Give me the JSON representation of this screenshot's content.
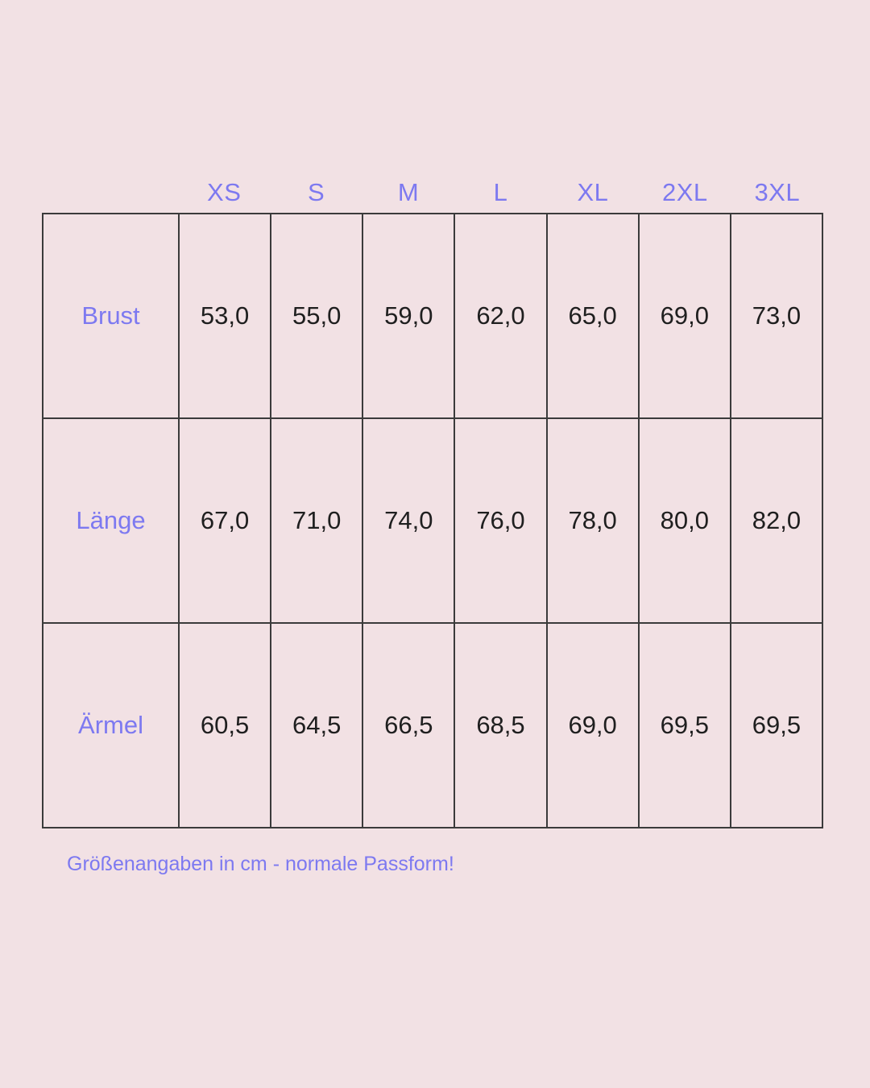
{
  "colors": {
    "background": "#f2e1e4",
    "accent_purple": "#7d79f0",
    "value_text": "#1f1f1f",
    "table_border": "#3b3b3b"
  },
  "chart_data": {
    "type": "table",
    "title": "",
    "columns": [
      "XS",
      "S",
      "M",
      "L",
      "XL",
      "2XL",
      "3XL"
    ],
    "rows": [
      {
        "label": "Brust",
        "values": [
          "53,0",
          "55,0",
          "59,0",
          "62,0",
          "65,0",
          "69,0",
          "73,0"
        ]
      },
      {
        "label": "Länge",
        "values": [
          "67,0",
          "71,0",
          "74,0",
          "76,0",
          "78,0",
          "80,0",
          "82,0"
        ]
      },
      {
        "label": "Ärmel",
        "values": [
          "60,5",
          "64,5",
          "66,5",
          "68,5",
          "69,0",
          "69,5",
          "69,5"
        ]
      }
    ],
    "footnote": "Größenangaben in cm - normale Passform!",
    "units": "cm"
  }
}
